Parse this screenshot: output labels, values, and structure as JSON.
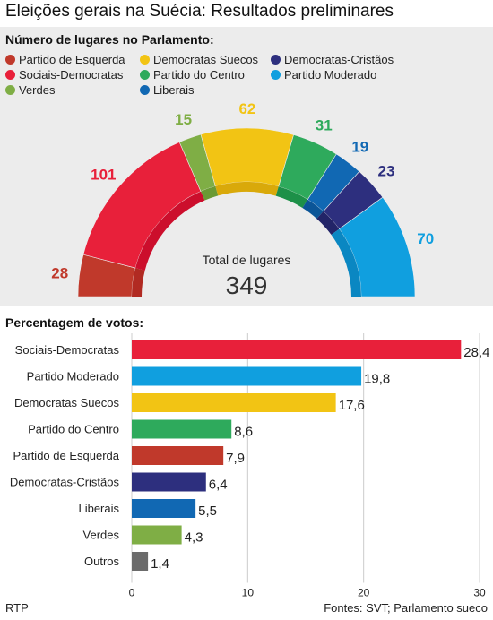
{
  "title": "Eleições gerais na Suécia: Resultados preliminares",
  "seats_section_label": "Número de lugares no Parlamento:",
  "votes_section_label": "Percentagem de votos:",
  "total_label": "Total de lugares",
  "total_value": "349",
  "source_left": "RTP",
  "source_right": "Fontes: SVT; Parlamento sueco",
  "legend": [
    {
      "label": "Partido de Esquerda",
      "color": "#c0392b"
    },
    {
      "label": "Democratas Suecos",
      "color": "#f2c414"
    },
    {
      "label": "Democratas-Cristãos",
      "color": "#2d2f7e"
    },
    {
      "label": "Sociais-Democratas",
      "color": "#e8203a"
    },
    {
      "label": "Partido do Centro",
      "color": "#2eaa5c"
    },
    {
      "label": "Partido Moderado",
      "color": "#109fdf"
    },
    {
      "label": "Verdes",
      "color": "#7fae45"
    },
    {
      "label": "Liberais",
      "color": "#1168b3"
    }
  ],
  "chart_data": [
    {
      "type": "pie",
      "subtype": "parliament-semicircle",
      "title": "Número de lugares no Parlamento:",
      "total": 349,
      "slices": [
        {
          "label": "Partido de Esquerda",
          "value": 28,
          "color": "#c0392b",
          "inner_color": "#b12a22"
        },
        {
          "label": "Sociais-Democratas",
          "value": 101,
          "color": "#e8203a",
          "inner_color": "#cc0e2c"
        },
        {
          "label": "Verdes",
          "value": 15,
          "color": "#7fae45",
          "inner_color": "#6a9a34"
        },
        {
          "label": "Democratas Suecos",
          "value": 62,
          "color": "#f2c414",
          "inner_color": "#d9a90a"
        },
        {
          "label": "Partido do Centro",
          "value": 31,
          "color": "#2eaa5c",
          "inner_color": "#1d9048"
        },
        {
          "label": "Liberais",
          "value": 19,
          "color": "#1168b3",
          "inner_color": "#0b5597"
        },
        {
          "label": "Democratas-Cristãos",
          "value": 23,
          "color": "#2d2f7e",
          "inner_color": "#222468"
        },
        {
          "label": "Partido Moderado",
          "value": 70,
          "color": "#109fdf",
          "inner_color": "#0a87c2"
        }
      ]
    },
    {
      "type": "bar",
      "orientation": "horizontal",
      "title": "Percentagem de votos:",
      "categories": [
        "Sociais-Democratas",
        "Partido Moderado",
        "Democratas Suecos",
        "Partido do Centro",
        "Partido de Esquerda",
        "Democratas-Cristãos",
        "Liberais",
        "Verdes",
        "Outros"
      ],
      "values": [
        28.4,
        19.8,
        17.6,
        8.6,
        7.9,
        6.4,
        5.5,
        4.3,
        1.4
      ],
      "value_labels": [
        "28,4",
        "19,8",
        "17,6",
        "8,6",
        "7,9",
        "6,4",
        "5,5",
        "4,3",
        "1,4"
      ],
      "colors": [
        "#e8203a",
        "#109fdf",
        "#f2c414",
        "#2eaa5c",
        "#c0392b",
        "#2d2f7e",
        "#1168b3",
        "#7fae45",
        "#6b6b6b"
      ],
      "xlim": [
        0,
        30
      ],
      "xticks": [
        0,
        10,
        20,
        30
      ],
      "grid": true
    }
  ]
}
